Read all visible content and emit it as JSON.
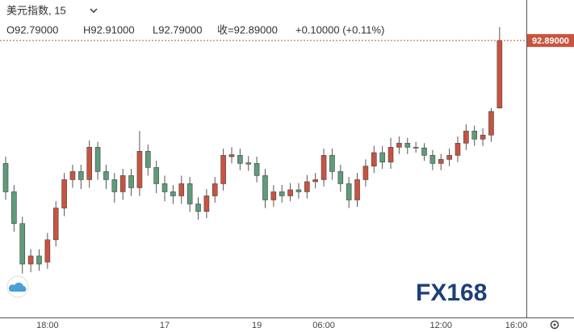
{
  "chart_data": {
    "type": "candlestick",
    "title": "美元指数, 15",
    "ohlc_labels": [
      "O92.79000",
      "H92.91000",
      "L92.79000",
      "收=92.89000",
      "+0.10000 (+0.11%)"
    ],
    "watermark": "FX168",
    "categories": [
      null,
      null,
      null,
      null,
      null,
      "18:00",
      null,
      null,
      null,
      null,
      null,
      null,
      null,
      null,
      null,
      null,
      null,
      null,
      null,
      "17",
      null,
      null,
      null,
      null,
      null,
      null,
      null,
      null,
      null,
      null,
      "19",
      null,
      null,
      null,
      null,
      null,
      null,
      null,
      "06:00",
      null,
      null,
      null,
      null,
      null,
      null,
      null,
      null,
      null,
      null,
      null,
      null,
      null,
      "12:00",
      null,
      null,
      null,
      null,
      null,
      null,
      null,
      null,
      "16:00"
    ],
    "open": [
      92.708,
      92.666,
      92.619,
      92.559,
      92.571,
      92.562,
      92.595,
      92.642,
      92.684,
      92.696,
      92.684,
      92.732,
      92.696,
      92.684,
      92.666,
      92.69,
      92.672,
      92.726,
      92.702,
      92.678,
      92.666,
      92.66,
      92.678,
      92.648,
      92.637,
      92.66,
      92.678,
      92.718,
      92.72,
      92.709,
      92.708,
      92.69,
      92.654,
      92.666,
      92.66,
      92.669,
      92.666,
      92.681,
      92.684,
      92.72,
      92.696,
      92.678,
      92.654,
      92.684,
      92.704,
      92.724,
      92.71,
      92.732,
      92.738,
      92.732,
      92.731,
      92.72,
      92.708,
      92.714,
      92.72,
      92.738,
      92.756,
      92.744,
      92.75,
      92.79,
      null,
      null
    ],
    "close": [
      92.666,
      92.619,
      92.559,
      92.571,
      92.559,
      92.595,
      92.642,
      92.684,
      92.696,
      92.684,
      92.732,
      92.696,
      92.684,
      92.666,
      92.69,
      92.672,
      92.726,
      92.702,
      92.678,
      92.666,
      92.66,
      92.678,
      92.648,
      92.637,
      92.66,
      92.678,
      92.72,
      92.721,
      92.708,
      92.707,
      92.69,
      92.654,
      92.666,
      92.66,
      92.669,
      92.666,
      92.681,
      92.684,
      92.72,
      92.696,
      92.678,
      92.654,
      92.684,
      92.704,
      92.724,
      92.71,
      92.732,
      92.738,
      92.732,
      92.731,
      92.72,
      92.708,
      92.714,
      92.72,
      92.738,
      92.756,
      92.744,
      92.75,
      92.785,
      92.89,
      null,
      null
    ],
    "high": [
      92.718,
      92.676,
      92.629,
      92.581,
      92.581,
      92.605,
      92.652,
      92.694,
      92.706,
      92.706,
      92.742,
      92.74,
      92.706,
      92.694,
      92.7,
      92.7,
      92.756,
      92.736,
      92.712,
      92.69,
      92.676,
      92.69,
      92.688,
      92.658,
      92.67,
      92.688,
      92.73,
      92.732,
      92.73,
      92.719,
      92.718,
      92.7,
      92.676,
      92.676,
      92.679,
      92.679,
      92.691,
      92.694,
      92.73,
      92.73,
      92.706,
      92.688,
      92.694,
      92.714,
      92.734,
      92.734,
      92.746,
      92.748,
      92.746,
      92.74,
      92.738,
      92.728,
      92.722,
      92.73,
      92.748,
      92.766,
      92.764,
      92.76,
      92.79,
      92.91,
      null,
      null
    ],
    "low": [
      92.654,
      92.607,
      92.545,
      92.547,
      92.549,
      92.552,
      92.585,
      92.63,
      92.672,
      92.67,
      92.672,
      92.684,
      92.67,
      92.65,
      92.654,
      92.66,
      92.66,
      92.69,
      92.664,
      92.652,
      92.648,
      92.648,
      92.636,
      92.625,
      92.627,
      92.65,
      92.668,
      92.708,
      92.698,
      92.697,
      92.68,
      92.642,
      92.644,
      92.65,
      92.652,
      92.656,
      92.656,
      92.671,
      92.674,
      92.684,
      92.666,
      92.642,
      92.644,
      92.674,
      92.694,
      92.7,
      92.7,
      92.722,
      92.722,
      92.724,
      92.712,
      92.698,
      92.698,
      92.704,
      92.71,
      92.728,
      92.734,
      92.734,
      92.74,
      92.79,
      null,
      null
    ],
    "up_color": "#c9533f",
    "down_color": "#5e9c7a",
    "ylim": [
      92.48,
      92.95
    ],
    "price_marker": {
      "value": 92.89,
      "label": "92.89000"
    }
  }
}
